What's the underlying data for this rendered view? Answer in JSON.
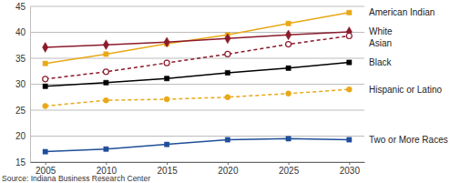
{
  "chart_data": {
    "type": "line",
    "x": [
      2005,
      2010,
      2015,
      2020,
      2025,
      2030
    ],
    "xlim": [
      2003.75,
      2031.25
    ],
    "xticks": [
      2005,
      2010,
      2015,
      2020,
      2025,
      2030
    ],
    "ylim": [
      15,
      45
    ],
    "yticks": [
      15,
      20,
      25,
      30,
      35,
      40,
      45
    ],
    "grid": true,
    "annotations": [
      "Source: Indiana Business Research Center"
    ],
    "series": [
      {
        "name": "American Indian",
        "color": "#e8a817",
        "marker": "square",
        "line_style": "solid",
        "values": [
          34.0,
          35.8,
          37.8,
          39.5,
          41.7,
          43.8
        ]
      },
      {
        "name": "White",
        "color": "#8b1a2b",
        "marker": "diamond",
        "line_style": "solid",
        "values": [
          37.1,
          37.6,
          38.1,
          38.8,
          39.5,
          40.1
        ]
      },
      {
        "name": "Asian",
        "color": "#8b1a2b",
        "marker": "circle-open",
        "line_style": "dashed",
        "values": [
          31.0,
          32.4,
          34.1,
          35.8,
          37.7,
          39.3
        ]
      },
      {
        "name": "Black",
        "color": "#000000",
        "marker": "square",
        "line_style": "solid",
        "values": [
          29.6,
          30.3,
          31.1,
          32.2,
          33.1,
          34.2
        ]
      },
      {
        "name": "Hispanic or Latino",
        "color": "#e8a817",
        "marker": "circle",
        "line_style": "dashed",
        "values": [
          25.8,
          26.9,
          27.1,
          27.5,
          28.2,
          29.0
        ]
      },
      {
        "name": "Two or More Races",
        "color": "#1f4e9a",
        "marker": "square",
        "line_style": "solid",
        "values": [
          17.0,
          17.5,
          18.4,
          19.3,
          19.5,
          19.3
        ]
      }
    ]
  }
}
